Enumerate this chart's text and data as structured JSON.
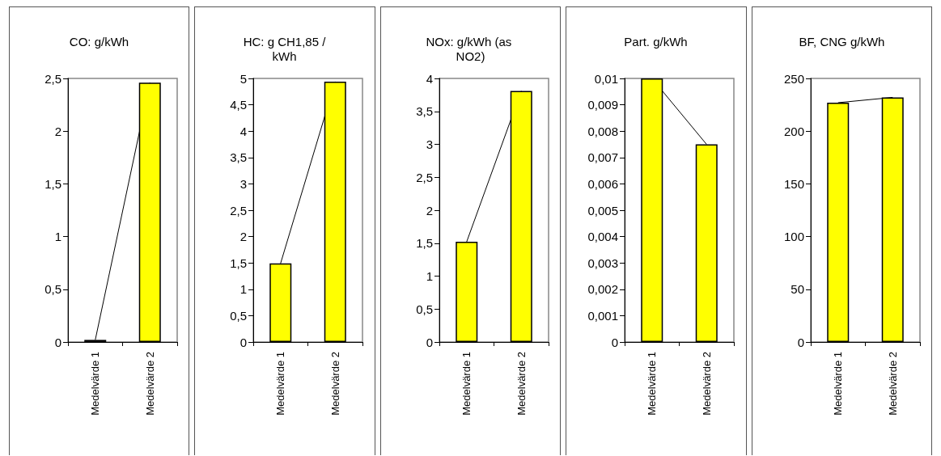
{
  "chart_data": [
    {
      "type": "bar",
      "title": "CO: g/kWh",
      "categories": [
        "Medelvärde 1",
        "Medelvärde 2"
      ],
      "ylim": [
        0,
        2.5
      ],
      "yticks": [
        0,
        {
          "value": 0.5,
          "label": "0,5"
        },
        1,
        {
          "value": 1.5,
          "label": "1,5"
        },
        2,
        {
          "value": 2.5,
          "label": "2,5"
        }
      ],
      "series": [
        {
          "color": "#ffff00",
          "values": [
            0.02,
            2.46
          ]
        },
        {
          "type": "line",
          "color": "#000000",
          "values": [
            0.02,
            2.46
          ]
        }
      ]
    },
    {
      "type": "bar",
      "title": "HC: g CH1,85 /kWh",
      "categories": [
        "Medelvärde 1",
        "Medelvärde 2"
      ],
      "ylim": [
        0,
        5
      ],
      "yticks": [
        0,
        {
          "value": 0.5,
          "label": "0,5"
        },
        1,
        {
          "value": 1.5,
          "label": "1,5"
        },
        2,
        {
          "value": 2.5,
          "label": "2,5"
        },
        3,
        {
          "value": 3.5,
          "label": "3,5"
        },
        4,
        {
          "value": 4.5,
          "label": "4,5"
        },
        5
      ],
      "series": [
        {
          "color": "#ffff00",
          "values": [
            1.49,
            4.94
          ]
        },
        {
          "type": "line",
          "color": "#000000",
          "values": [
            1.49,
            4.94
          ]
        }
      ]
    },
    {
      "type": "bar",
      "title": "NOx: g/kWh (as NO2)",
      "categories": [
        "Medelvärde 1",
        "Medelvärde 2"
      ],
      "ylim": [
        0,
        4
      ],
      "yticks": [
        0,
        {
          "value": 0.5,
          "label": "0,5"
        },
        1,
        {
          "value": 1.5,
          "label": "1,5"
        },
        2,
        {
          "value": 2.5,
          "label": "2,5"
        },
        3,
        {
          "value": 3.5,
          "label": "3,5"
        },
        4
      ],
      "series": [
        {
          "color": "#ffff00",
          "values": [
            1.52,
            3.81
          ]
        },
        {
          "type": "line",
          "color": "#000000",
          "values": [
            1.52,
            3.81
          ]
        }
      ]
    },
    {
      "type": "bar",
      "title": "Part. g/kWh",
      "categories": [
        "Medelvärde 1",
        "Medelvärde 2"
      ],
      "ylim": [
        0,
        0.01
      ],
      "yticks": [
        0,
        {
          "value": 0.001,
          "label": "0,001"
        },
        {
          "value": 0.002,
          "label": "0,002"
        },
        {
          "value": 0.003,
          "label": "0,003"
        },
        {
          "value": 0.004,
          "label": "0,004"
        },
        {
          "value": 0.005,
          "label": "0,005"
        },
        {
          "value": 0.006,
          "label": "0,006"
        },
        {
          "value": 0.007,
          "label": "0,007"
        },
        {
          "value": 0.008,
          "label": "0,008"
        },
        {
          "value": 0.009,
          "label": "0,009"
        },
        {
          "value": 0.01,
          "label": "0,01"
        }
      ],
      "series": [
        {
          "color": "#ffff00",
          "values": [
            0.01,
            0.0075
          ]
        },
        {
          "type": "line",
          "color": "#000000",
          "values": [
            0.01,
            0.0075
          ]
        }
      ]
    },
    {
      "type": "bar",
      "title": "BF, CNG g/kWh",
      "categories": [
        "Medelvärde 1",
        "Medelvärde 2"
      ],
      "ylim": [
        0,
        250
      ],
      "yticks": [
        0,
        50,
        100,
        150,
        200,
        250
      ],
      "series": [
        {
          "color": "#ffff00",
          "values": [
            227,
            232
          ]
        },
        {
          "type": "line",
          "color": "#000000",
          "values": [
            227,
            232
          ]
        }
      ]
    }
  ]
}
